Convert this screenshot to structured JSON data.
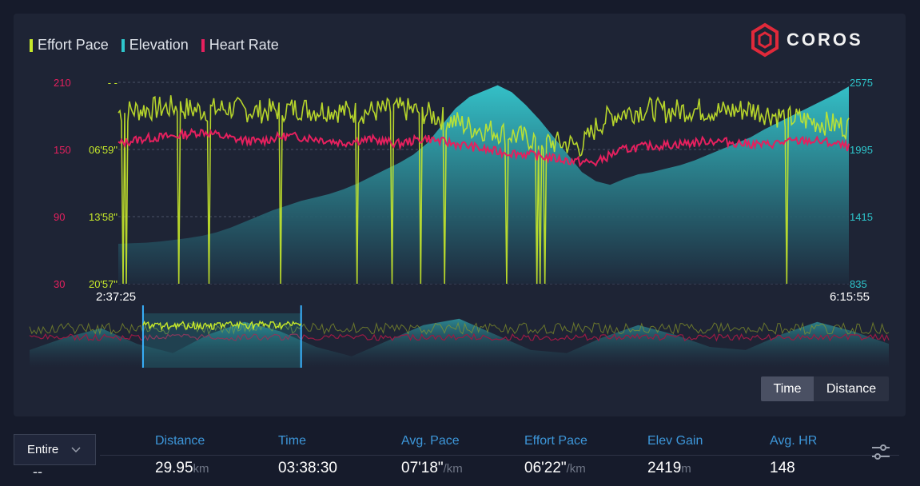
{
  "legend": [
    {
      "label": "Effort Pace",
      "color": "#c6e82a"
    },
    {
      "label": "Elevation",
      "color": "#2ec6cc"
    },
    {
      "label": "Heart Rate",
      "color": "#e5205e"
    }
  ],
  "logo": {
    "text": "COROS",
    "brand_color": "#e0293a"
  },
  "chart_data": {
    "type": "line",
    "x_axis": {
      "start_label": "2:37:25",
      "end_label": "6:15:55"
    },
    "left_axis_hr": {
      "ticks": [
        "210",
        "150",
        "90",
        "30"
      ],
      "range": [
        30,
        210
      ],
      "color": "#e5205e"
    },
    "left_axis_pace": {
      "ticks": [
        "- -",
        "06'59\"",
        "13'58\"",
        "20'57\""
      ],
      "color": "#c6e82a"
    },
    "right_axis_elev": {
      "ticks": [
        "2575",
        "1995",
        "1415",
        "835"
      ],
      "range": [
        835,
        2575
      ],
      "color": "#2ec6cc"
    },
    "grid": true,
    "series": [
      {
        "name": "Elevation",
        "type": "area",
        "values": [
          1180,
          1185,
          1190,
          1200,
          1215,
          1230,
          1250,
          1280,
          1320,
          1370,
          1420,
          1470,
          1510,
          1550,
          1580,
          1610,
          1650,
          1700,
          1760,
          1820,
          1880,
          1950,
          2050,
          2200,
          2350,
          2450,
          2500,
          2550,
          2490,
          2380,
          2250,
          2100,
          1950,
          1800,
          1720,
          1690,
          1740,
          1780,
          1800,
          1830,
          1860,
          1900,
          1950,
          2000,
          2050,
          2100,
          2170,
          2230,
          2290,
          2350,
          2410,
          2470,
          2540
        ]
      },
      {
        "name": "Heart Rate",
        "type": "line",
        "values": [
          155,
          158,
          160,
          161,
          162,
          164,
          166,
          163,
          160,
          158,
          157,
          160,
          162,
          161,
          160,
          158,
          156,
          158,
          159,
          157,
          155,
          158,
          160,
          157,
          155,
          153,
          150,
          148,
          147,
          146,
          144,
          142,
          140,
          139,
          138,
          145,
          150,
          152,
          153,
          154,
          155,
          156,
          158,
          157,
          156,
          155,
          154,
          156,
          157,
          158,
          157,
          155,
          152
        ]
      },
      {
        "name": "Effort Pace",
        "type": "line",
        "values": [
          183,
          185,
          186,
          187,
          188,
          186,
          185,
          186,
          187,
          185,
          184,
          185,
          186,
          187,
          185,
          186,
          184,
          183,
          184,
          185,
          186,
          185,
          182,
          178,
          175,
          170,
          168,
          166,
          163,
          160,
          158,
          156,
          155,
          153,
          170,
          180,
          183,
          185,
          186,
          184,
          185,
          186,
          185,
          184,
          185,
          186,
          183,
          180,
          178,
          176,
          174,
          172,
          170
        ]
      }
    ]
  },
  "overview": {
    "window_start_fraction": 0.132,
    "window_end_fraction": 0.316
  },
  "toggle": {
    "time": "Time",
    "distance": "Distance",
    "active": "time"
  },
  "range_select": {
    "value": "Entire",
    "value_below": "--"
  },
  "stats": [
    {
      "label": "Distance",
      "value": "29.95",
      "unit": "km"
    },
    {
      "label": "Time",
      "value": "03:38:30",
      "unit": ""
    },
    {
      "label": "Avg. Pace",
      "value": "07'18\"",
      "unit": "/km"
    },
    {
      "label": "Effort Pace",
      "value": "06'22\"",
      "unit": "/km"
    },
    {
      "label": "Elev Gain",
      "value": "2419",
      "unit": "m"
    },
    {
      "label": "Avg. HR",
      "value": "148",
      "unit": ""
    }
  ]
}
